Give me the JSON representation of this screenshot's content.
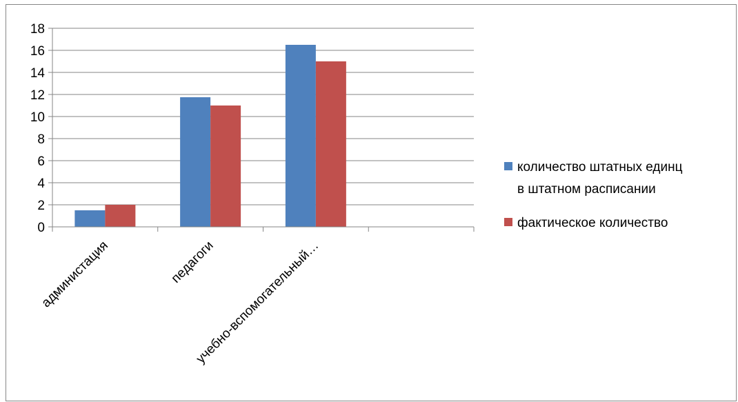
{
  "chart_data": {
    "type": "bar",
    "categories": [
      "администация",
      "педагоги",
      "учебно-вспомогательный…",
      ""
    ],
    "series": [
      {
        "name": "количество штатных единц в штатном расписании",
        "name_lines": [
          "количество штатных единц",
          "в штатном расписании"
        ],
        "color": "#4F81BD",
        "values": [
          1.5,
          11.75,
          16.5,
          null
        ]
      },
      {
        "name": "фактическое количество",
        "name_lines": [
          "фактическое количество"
        ],
        "color": "#C0504D",
        "values": [
          2,
          11,
          15,
          null
        ]
      }
    ],
    "ylim": [
      0,
      18
    ],
    "yticks": [
      0,
      2,
      4,
      6,
      8,
      10,
      12,
      14,
      16,
      18
    ],
    "grid": true,
    "legend_position": "right",
    "title": "",
    "xlabel": "",
    "ylabel": ""
  }
}
